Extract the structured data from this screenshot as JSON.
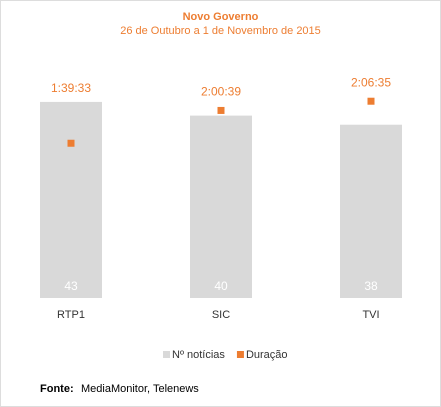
{
  "chart_data": {
    "type": "bar",
    "title": "Novo Governo",
    "subtitle": "26 de Outubro a 1 de Novembro de 2015",
    "categories": [
      "RTP1",
      "SIC",
      "TVI"
    ],
    "series": [
      {
        "name": "Nº notícias",
        "color": "#d9d9d9",
        "values": [
          43,
          40,
          38
        ]
      },
      {
        "name": "Duração",
        "color": "#ed7d31",
        "axis": "y2",
        "values": [
          5973,
          7239,
          7595
        ],
        "value_labels": [
          "1:39:33",
          "2:00:39",
          "2:06:35"
        ]
      }
    ],
    "ylim": [
      0,
      50
    ],
    "y2lim": [
      0,
      8800
    ],
    "grid": false,
    "legend": "bottom",
    "source_label": "Fonte:",
    "source": "MediaMonitor, Telenews"
  }
}
